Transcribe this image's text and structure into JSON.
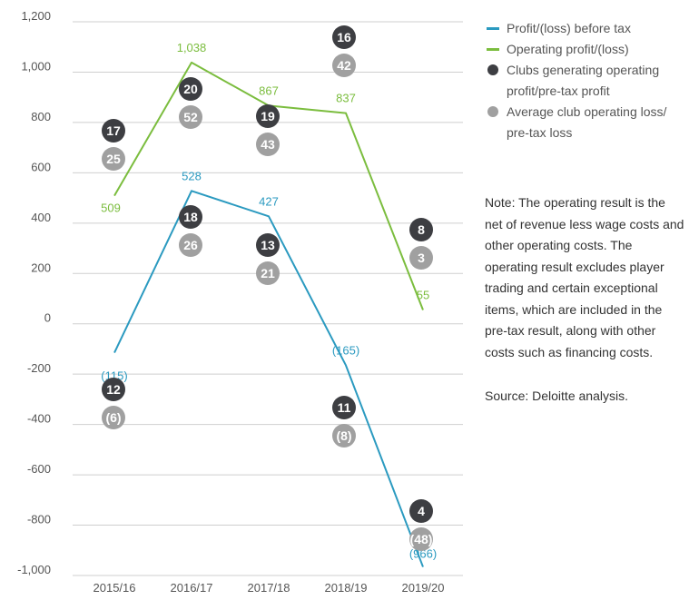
{
  "chart_data": {
    "type": "line",
    "categories": [
      "2015/16",
      "2016/17",
      "2017/18",
      "2018/19",
      "2019/20"
    ],
    "y_ticks": [
      "1,200",
      "1,000",
      "800",
      "600",
      "400",
      "200",
      "0",
      "-200",
      "-400",
      "-600",
      "-800",
      "-1,000"
    ],
    "ylim": [
      -1000,
      1200
    ],
    "grid": true,
    "legend_position": "right",
    "series": [
      {
        "name": "Profit/(loss) before tax",
        "color": "#2b9ac0",
        "values": [
          -115,
          528,
          427,
          -165,
          -966
        ],
        "labels": [
          "(115)",
          "528",
          "427",
          "(165)",
          "(966)"
        ]
      },
      {
        "name": "Operating profit/(loss)",
        "color": "#7bbd3e",
        "values": [
          509,
          1038,
          867,
          837,
          55
        ],
        "labels": [
          "509",
          "1,038",
          "867",
          "837",
          "55"
        ]
      }
    ],
    "bubbles": {
      "clubs_name": "Clubs generating operating profit/pre-tax profit",
      "avg_name": "Average club operating loss/ pre-tax loss",
      "clubs_color": "#3d3e42",
      "avg_color": "#a0a0a0",
      "operating_clubs": [
        "17",
        "20",
        "19",
        "16",
        "8"
      ],
      "operating_avg": [
        "25",
        "52",
        "43",
        "42",
        "3"
      ],
      "pretax_clubs": [
        "12",
        "18",
        "13",
        "11",
        "4"
      ],
      "pretax_avg": [
        "(6)",
        "26",
        "21",
        "(8)",
        "(48)"
      ]
    }
  },
  "note": "Note: The operating result is the net of revenue less wage costs and other operating costs. The operating result excludes player trading and certain exceptional items, which are included in the pre-tax result, along with other costs such as financing costs.",
  "source": "Source: Deloitte analysis."
}
